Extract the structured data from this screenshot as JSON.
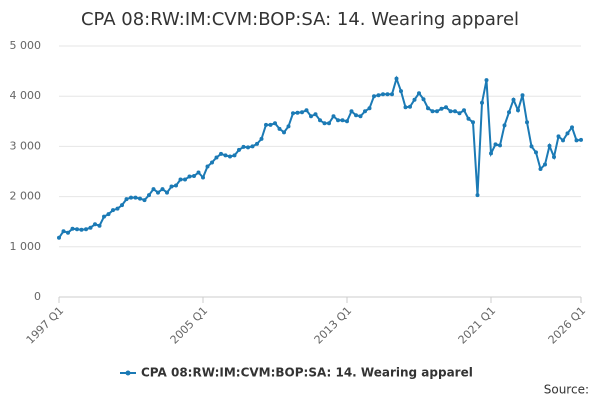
{
  "chart_data": {
    "type": "line",
    "title": "CPA 08:RW:IM:CVM:BOP:SA: 14. Wearing apparel",
    "source": "Source:",
    "categories": [
      "1997 Q1",
      null,
      null,
      null,
      null,
      null,
      null,
      null,
      null,
      null,
      null,
      null,
      null,
      null,
      null,
      null,
      null,
      null,
      null,
      null,
      null,
      null,
      null,
      null,
      null,
      null,
      null,
      null,
      null,
      null,
      null,
      null,
      "2005 Q1",
      null,
      null,
      null,
      null,
      null,
      null,
      null,
      null,
      null,
      null,
      null,
      null,
      null,
      null,
      null,
      null,
      null,
      null,
      null,
      null,
      null,
      null,
      null,
      null,
      null,
      null,
      null,
      null,
      null,
      null,
      null,
      "2013 Q1",
      null,
      null,
      null,
      null,
      null,
      null,
      null,
      null,
      null,
      null,
      null,
      null,
      null,
      null,
      null,
      null,
      null,
      null,
      null,
      null,
      null,
      null,
      null,
      null,
      null,
      null,
      null,
      null,
      null,
      null,
      null,
      "2021 Q1",
      null,
      null,
      null,
      null,
      null,
      null,
      null,
      null,
      null,
      null,
      null,
      null,
      null,
      null,
      null,
      null,
      null,
      null,
      null,
      "2026 Q1"
    ],
    "series": [
      {
        "name": "CPA 08:RW:IM:CVM:BOP:SA: 14. Wearing apparel",
        "color": "#1b7ab5",
        "values": [
          1180,
          1310,
          1280,
          1360,
          1350,
          1340,
          1350,
          1380,
          1450,
          1420,
          1600,
          1650,
          1730,
          1760,
          1830,
          1950,
          1980,
          1980,
          1960,
          1930,
          2030,
          2150,
          2080,
          2150,
          2080,
          2200,
          2220,
          2340,
          2340,
          2400,
          2410,
          2480,
          2380,
          2600,
          2680,
          2780,
          2850,
          2820,
          2800,
          2820,
          2930,
          2990,
          2980,
          3000,
          3050,
          3150,
          3430,
          3430,
          3460,
          3350,
          3280,
          3400,
          3660,
          3670,
          3680,
          3720,
          3600,
          3640,
          3520,
          3460,
          3460,
          3600,
          3520,
          3520,
          3500,
          3700,
          3620,
          3600,
          3700,
          3760,
          4000,
          4020,
          4040,
          4040,
          4040,
          4350,
          4100,
          3780,
          3790,
          3930,
          4060,
          3940,
          3760,
          3700,
          3700,
          3750,
          3780,
          3700,
          3700,
          3660,
          3720,
          3550,
          3480,
          2030,
          3870,
          4320,
          2860,
          3040,
          3020,
          3420,
          3680,
          3930,
          3720,
          4020,
          3480,
          3000,
          2880,
          2550,
          2640,
          3010,
          2790,
          3200,
          3120,
          3260,
          3380,
          3120,
          3130
        ]
      }
    ],
    "ylim": [
      0,
      5000
    ],
    "yticks": [
      0,
      {
        "value": 1000,
        "label": "1 000"
      },
      {
        "value": 2000,
        "label": "2 000"
      },
      {
        "value": 3000,
        "label": "3 000"
      },
      {
        "value": 4000,
        "label": "4 000"
      },
      {
        "value": 5000,
        "label": "5 000"
      }
    ],
    "grid": true,
    "legend": "bottom"
  }
}
